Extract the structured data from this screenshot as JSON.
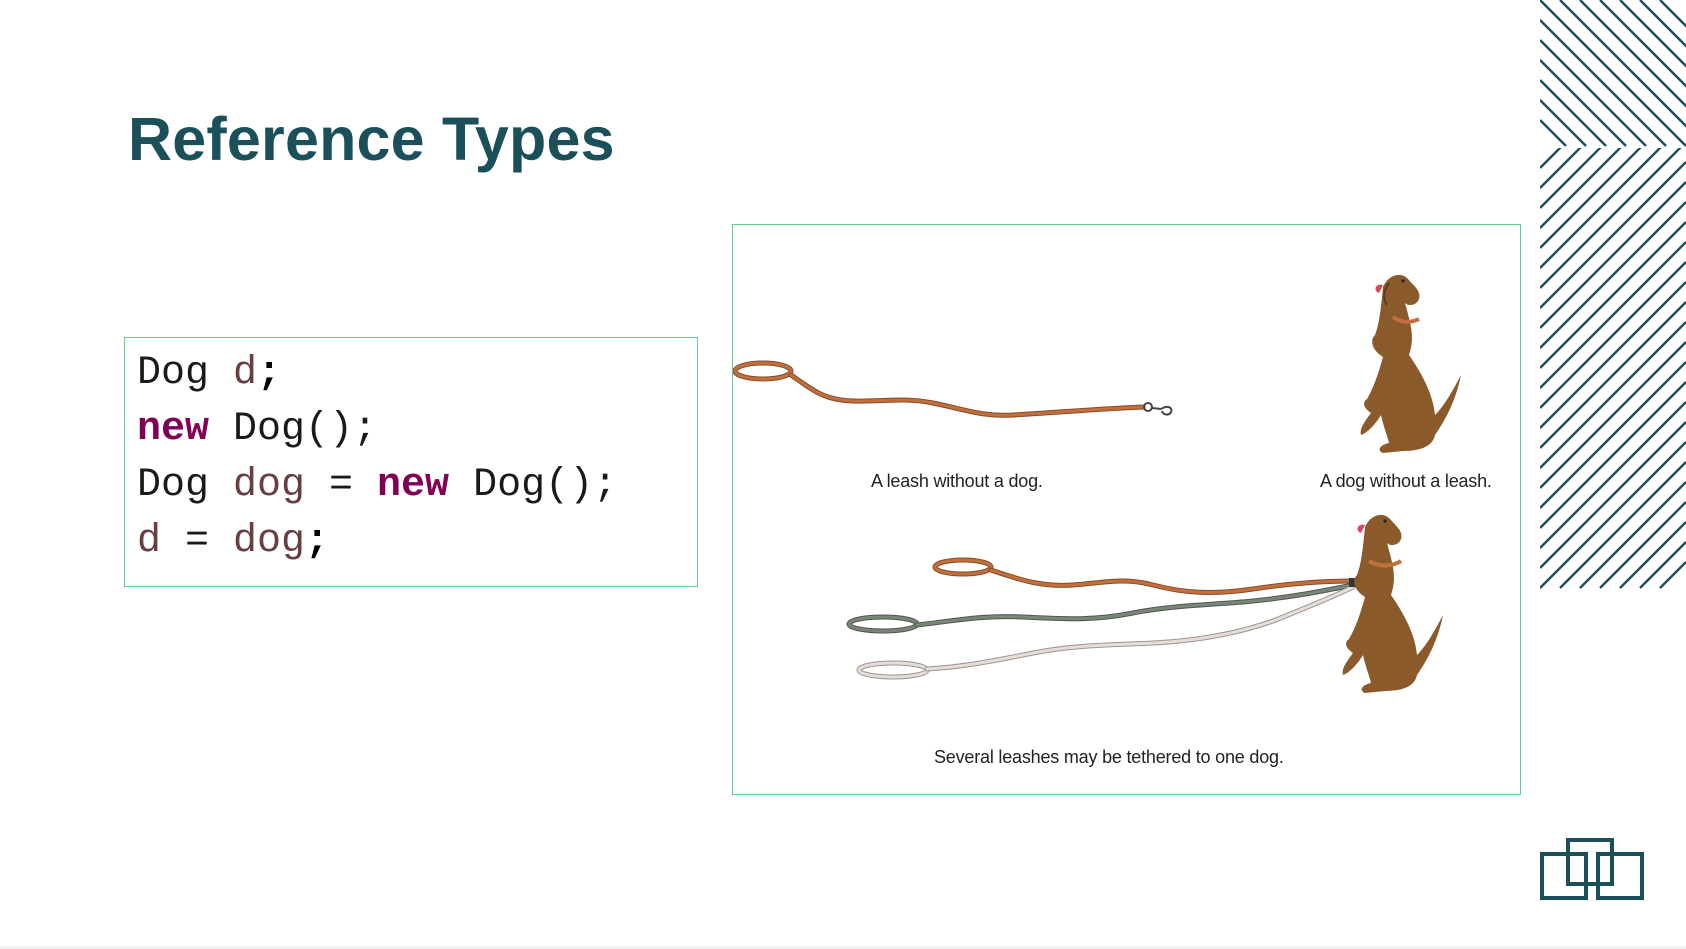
{
  "slide": {
    "title": "Reference Types",
    "code_lines": [
      [
        {
          "t": "Dog ",
          "c": "type"
        },
        {
          "t": "d",
          "c": "var"
        },
        {
          "t": ";",
          "c": "semi"
        }
      ],
      [
        {
          "t": "new",
          "c": "kw"
        },
        {
          "t": " Dog();",
          "c": "type"
        }
      ],
      [
        {
          "t": "Dog ",
          "c": "type"
        },
        {
          "t": "dog",
          "c": "var"
        },
        {
          "t": " = ",
          "c": "type"
        },
        {
          "t": "new",
          "c": "kw"
        },
        {
          "t": " Dog();",
          "c": "type"
        }
      ],
      [
        {
          "t": "d",
          "c": "var"
        },
        {
          "t": " = ",
          "c": "type"
        },
        {
          "t": "dog",
          "c": "var"
        },
        {
          "t": ";",
          "c": "semi"
        }
      ]
    ],
    "figure": {
      "caption_leash": "A leash without a dog.",
      "caption_dog": "A dog without a leash.",
      "caption_tethered": "Several leashes may be tethered to one dog."
    },
    "colors": {
      "title": "#1b4f5a",
      "keyword": "#7f0055",
      "variable": "#6a3e3e",
      "box_border": "#5fcf8f",
      "leash_brown": "#c0703f",
      "leash_gray": "#6e7a6e",
      "leash_light": "#d8d0cc",
      "dog": "#8b5a2b",
      "deco": "#1b4f5a"
    },
    "icons": {
      "decoration": "diagonal-stripes-decoration",
      "logo": "interlocking-boxes-logo"
    }
  }
}
